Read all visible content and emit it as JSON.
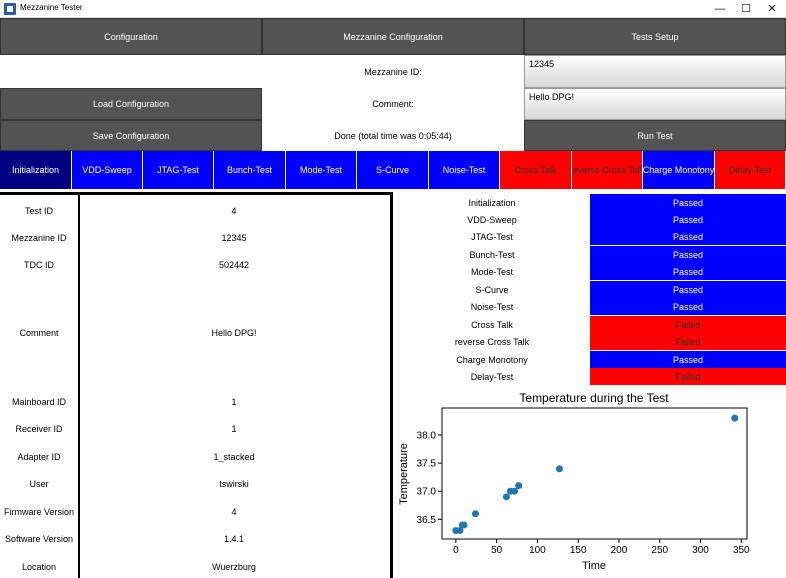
{
  "window": {
    "title": "Mezzanine Tester",
    "icon": "app-icon",
    "controls": [
      "—",
      "☐",
      "✕"
    ]
  },
  "header": {
    "configuration": "Configuration",
    "mezzanine_configuration": "Mezzanine Configuration",
    "tests_setup": "Tests Setup",
    "mezzanine_id_label": "Mezzanine ID:",
    "mezzanine_id_value": "12345",
    "load_configuration": "Load Configuration",
    "comment_label": "Comment:",
    "comment_value": "Hello DPG!",
    "save_configuration": "Save Configuration",
    "status": "Done (total time was 0:05:44)",
    "run_test": "Run Test"
  },
  "tabs": [
    {
      "label": "Initialization",
      "state": "active"
    },
    {
      "label": "VDD-Sweep",
      "state": "passed"
    },
    {
      "label": "JTAG-Test",
      "state": "passed"
    },
    {
      "label": "Bunch-Test",
      "state": "passed"
    },
    {
      "label": "Mode-Test",
      "state": "passed"
    },
    {
      "label": "S-Curve",
      "state": "passed"
    },
    {
      "label": "Noise-Test",
      "state": "passed"
    },
    {
      "label": "Cross Talk",
      "state": "failed"
    },
    {
      "label": "reverse Cross Talk",
      "state": "failed"
    },
    {
      "label": "Charge Monotony",
      "state": "passed"
    },
    {
      "label": "Delay-Test",
      "state": "failed"
    }
  ],
  "info": [
    {
      "key": "Test ID",
      "value": "4"
    },
    {
      "key": "Mezzanine ID",
      "value": "12345"
    },
    {
      "key": "TDC ID",
      "value": "502442"
    },
    {
      "key": "Comment",
      "value": "Hello DPG!"
    },
    {
      "key": "Mainboard ID",
      "value": "1"
    },
    {
      "key": "Receiver ID",
      "value": "1"
    },
    {
      "key": "Adapter ID",
      "value": "1_stacked"
    },
    {
      "key": "User",
      "value": "tswirski"
    },
    {
      "key": "Firmware Version",
      "value": "4"
    },
    {
      "key": "Software Version",
      "value": "1.4.1"
    },
    {
      "key": "Location",
      "value": "Wuerzburg"
    }
  ],
  "results": [
    {
      "name": "Initialization",
      "status": "Passed"
    },
    {
      "name": "VDD-Sweep",
      "status": "Passed"
    },
    {
      "name": "JTAG-Test",
      "status": "Passed"
    },
    {
      "name": "Bunch-Test",
      "status": "Passed"
    },
    {
      "name": "Mode-Test",
      "status": "Passed"
    },
    {
      "name": "S-Curve",
      "status": "Passed"
    },
    {
      "name": "Noise-Test",
      "status": "Passed"
    },
    {
      "name": "Cross Talk",
      "status": "Failed"
    },
    {
      "name": "reverse Cross Talk",
      "status": "Failed"
    },
    {
      "name": "Charge Monotony",
      "status": "Passed"
    },
    {
      "name": "Delay-Test",
      "status": "Failed"
    }
  ],
  "colors": {
    "passed": "#0000ff",
    "failed": "#ff0000",
    "active": "#000080",
    "button": "#535353",
    "marker": "#1f77b4"
  },
  "chart_data": {
    "type": "scatter",
    "title": "Temperature during the Test",
    "xlabel": "Time",
    "ylabel": "Temperature",
    "xlim": [
      -17,
      357
    ],
    "ylim": [
      36.15,
      38.48
    ],
    "xticks": [
      0,
      50,
      100,
      150,
      200,
      250,
      300,
      350
    ],
    "yticks": [
      36.5,
      37.0,
      37.5,
      38.0
    ],
    "ytick_labels": [
      "36.5",
      "37.0",
      "37.5",
      "38.0"
    ],
    "grid": false,
    "x": [
      0,
      5,
      8,
      10,
      24,
      62,
      67,
      72,
      77,
      127,
      342
    ],
    "y": [
      36.3,
      36.3,
      36.4,
      36.4,
      36.6,
      36.9,
      37.0,
      37.0,
      37.1,
      37.4,
      38.3
    ]
  }
}
